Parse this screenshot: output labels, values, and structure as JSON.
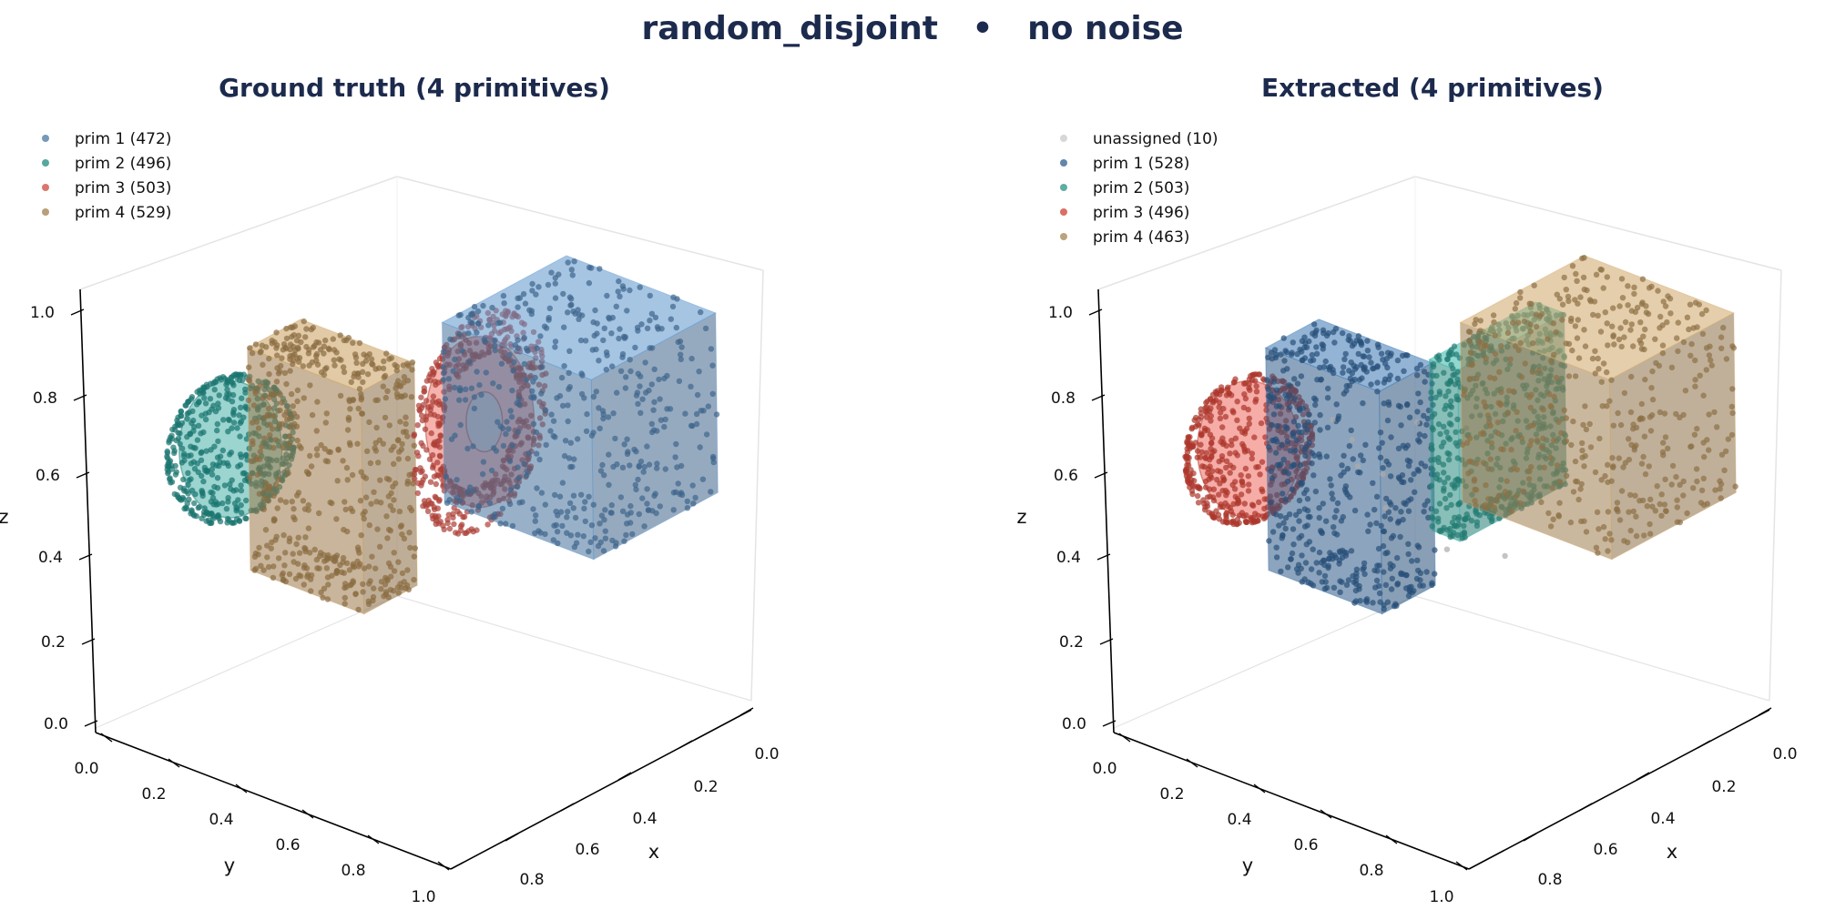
{
  "figure": {
    "suptitle": "random_disjoint   •   no noise"
  },
  "chart_data": [
    {
      "type": "scatter",
      "projection": "3d",
      "title": "Ground truth (4 primitives)",
      "xlabel": "x",
      "ylabel": "y",
      "zlabel": "z",
      "xlim": [
        0.0,
        1.0
      ],
      "ylim": [
        0.0,
        1.0
      ],
      "zlim": [
        0.0,
        1.0
      ],
      "xticks": [
        "0.0",
        "0.2",
        "0.4",
        "0.6",
        "0.8"
      ],
      "yticks": [
        "0.0",
        "0.2",
        "0.4",
        "0.6",
        "0.8",
        "1.0"
      ],
      "zticks": [
        "0.0",
        "0.2",
        "0.4",
        "0.6",
        "0.8",
        "1.0"
      ],
      "legend_position": "top-left",
      "series": [
        {
          "name": "prim 1 (472)",
          "color": "#4a77a3",
          "count": 472,
          "shape": "box",
          "center": [
            0.25,
            0.75,
            0.72
          ],
          "size": [
            0.42,
            0.42,
            0.42
          ]
        },
        {
          "name": "prim 2 (496)",
          "color": "#1f8a82",
          "count": 496,
          "shape": "ellipsoid",
          "center": [
            0.63,
            0.08,
            0.55
          ],
          "size": [
            0.34,
            0.22,
            0.32
          ]
        },
        {
          "name": "prim 3 (503)",
          "color": "#cc4a3f",
          "count": 503,
          "shape": "torus",
          "center": [
            0.35,
            0.55,
            0.66
          ],
          "size": [
            0.36,
            0.06,
            0.4
          ]
        },
        {
          "name": "prim 4 (529)",
          "color": "#a27f4c",
          "count": 529,
          "shape": "box",
          "center": [
            0.55,
            0.3,
            0.55
          ],
          "size": [
            0.18,
            0.32,
            0.52
          ]
        }
      ]
    },
    {
      "type": "scatter",
      "projection": "3d",
      "title": "Extracted (4 primitives)",
      "xlabel": "x",
      "ylabel": "y",
      "zlabel": "z",
      "xlim": [
        0.0,
        1.0
      ],
      "ylim": [
        0.0,
        1.0
      ],
      "zlim": [
        0.0,
        1.0
      ],
      "xticks": [
        "0.0",
        "0.2",
        "0.4",
        "0.6",
        "0.8"
      ],
      "yticks": [
        "0.0",
        "0.2",
        "0.4",
        "0.6",
        "0.8",
        "1.0"
      ],
      "zticks": [
        "0.0",
        "0.2",
        "0.4",
        "0.6",
        "0.8",
        "1.0"
      ],
      "legend_position": "top-left",
      "series": [
        {
          "name": "unassigned (10)",
          "color": "#c9c9c9",
          "count": 10,
          "shape": "scatter",
          "center": [
            0.45,
            0.4,
            0.55
          ],
          "size": [
            0.5,
            0.5,
            0.3
          ]
        },
        {
          "name": "prim 1 (528)",
          "color": "#2f5e8e",
          "count": 528,
          "shape": "box",
          "center": [
            0.55,
            0.3,
            0.55
          ],
          "size": [
            0.18,
            0.32,
            0.52
          ]
        },
        {
          "name": "prim 2 (503)",
          "color": "#2a9287",
          "count": 503,
          "shape": "flatbox",
          "center": [
            0.35,
            0.55,
            0.66
          ],
          "size": [
            0.36,
            0.08,
            0.4
          ]
        },
        {
          "name": "prim 3 (496)",
          "color": "#cc3f33",
          "count": 496,
          "shape": "ellipsoid",
          "center": [
            0.63,
            0.08,
            0.55
          ],
          "size": [
            0.34,
            0.22,
            0.32
          ]
        },
        {
          "name": "prim 4 (463)",
          "color": "#a68452",
          "count": 463,
          "shape": "box",
          "center": [
            0.25,
            0.75,
            0.72
          ],
          "size": [
            0.42,
            0.42,
            0.42
          ]
        }
      ]
    }
  ]
}
